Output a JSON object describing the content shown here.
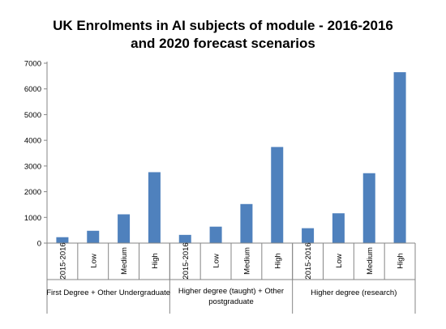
{
  "chart_data": {
    "type": "bar",
    "title_lines": [
      "UK Enrolments in AI subjects of module - 2016-2016",
      "and 2020 forecast scenarios"
    ],
    "categories": [
      "2015-2016",
      "Low",
      "Medium",
      "High",
      "2015-2016",
      "Low",
      "Medium",
      "High",
      "2015-2016",
      "Low",
      "Medium",
      "High"
    ],
    "groups": [
      {
        "label_lines": [
          "First Degree + Other Undergraduate"
        ],
        "categories": [
          "2015-2016",
          "Low",
          "Medium",
          "High"
        ],
        "values": [
          230,
          480,
          1120,
          2760
        ]
      },
      {
        "label_lines": [
          "Higher degree (taught) + Other",
          "postgraduate"
        ],
        "categories": [
          "2015-2016",
          "Low",
          "Medium",
          "High"
        ],
        "values": [
          320,
          640,
          1520,
          3740
        ]
      },
      {
        "label_lines": [
          "Higher degree (research)"
        ],
        "categories": [
          "2015-2016",
          "Low",
          "Medium",
          "High"
        ],
        "values": [
          580,
          1160,
          2720,
          6650
        ]
      }
    ],
    "ylim": [
      0,
      7000
    ],
    "yticks": [
      0,
      1000,
      2000,
      3000,
      4000,
      5000,
      6000,
      7000
    ],
    "grid": false,
    "legend": "none",
    "bar_color": "#4f81bd"
  }
}
